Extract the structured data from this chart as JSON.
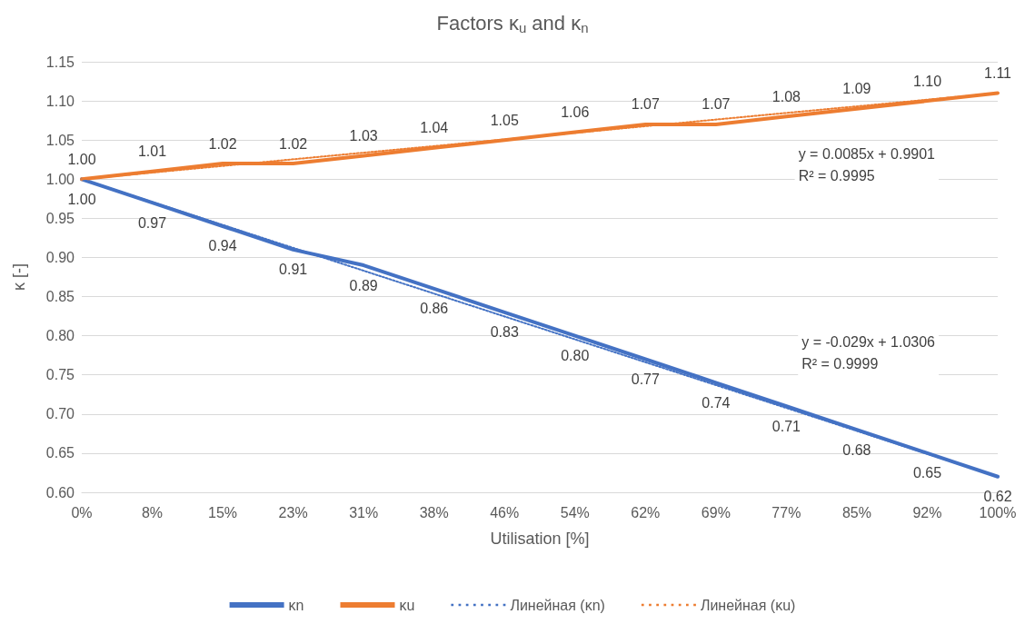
{
  "chart_data": {
    "type": "line",
    "title": "Factors κ$_{u}$ and κ$_{n}$",
    "xlabel": "Utilisation [%]",
    "ylabel": "κ [-]",
    "categories": [
      "0%",
      "8%",
      "15%",
      "23%",
      "31%",
      "38%",
      "46%",
      "54%",
      "62%",
      "69%",
      "77%",
      "85%",
      "92%",
      "100%"
    ],
    "series": [
      {
        "name": "κn",
        "color": "#4472c4",
        "values": [
          1.0,
          0.97,
          0.94,
          0.91,
          0.89,
          0.86,
          0.83,
          0.8,
          0.77,
          0.74,
          0.71,
          0.68,
          0.65,
          0.62
        ],
        "value_labels": [
          "1.00",
          "0.97",
          "0.94",
          "0.91",
          "0.89",
          "0.86",
          "0.83",
          "0.80",
          "0.77",
          "0.74",
          "0.71",
          "0.68",
          "0.65",
          "0.62"
        ]
      },
      {
        "name": "κu",
        "color": "#ed7d31",
        "values": [
          1.0,
          1.01,
          1.02,
          1.02,
          1.03,
          1.04,
          1.05,
          1.06,
          1.07,
          1.07,
          1.08,
          1.09,
          1.1,
          1.11
        ],
        "value_labels": [
          "1.00",
          "1.01",
          "1.02",
          "1.02",
          "1.03",
          "1.04",
          "1.05",
          "1.06",
          "1.07",
          "1.07",
          "1.08",
          "1.09",
          "1.10",
          "1.11"
        ]
      },
      {
        "name": "Линейная (κn)",
        "color": "#4472c4",
        "x": [
          "0%",
          "100%"
        ],
        "values": [
          1.0,
          0.62
        ],
        "line_style": "dotted"
      },
      {
        "name": "Линейная (κu)",
        "color": "#ed7d31",
        "x": [
          "0%",
          "100%"
        ],
        "values": [
          1.0,
          1.11
        ],
        "line_style": "dotted"
      }
    ],
    "annotations": [
      "y = 0.0085x + 0.9901\nR² = 0.9995",
      "y = -0.029x + 1.0306\nR² = 0.9999"
    ],
    "ylim": [
      0.6,
      1.15
    ],
    "yticks": [
      {
        "value": 0.6,
        "label": "0.60"
      },
      {
        "value": 0.65,
        "label": "0.65"
      },
      {
        "value": 0.7,
        "label": "0.70"
      },
      {
        "value": 0.75,
        "label": "0.75"
      },
      {
        "value": 0.8,
        "label": "0.80"
      },
      {
        "value": 0.85,
        "label": "0.85"
      },
      {
        "value": 0.9,
        "label": "0.90"
      },
      {
        "value": 0.95,
        "label": "0.95"
      },
      {
        "value": 1.0,
        "label": "1.00"
      },
      {
        "value": 1.05,
        "label": "1.05"
      },
      {
        "value": 1.1,
        "label": "1.10"
      },
      {
        "value": 1.15,
        "label": "1.15"
      }
    ],
    "grid": "y",
    "legend": "bottom",
    "marker": "none",
    "line_style": "solid"
  }
}
